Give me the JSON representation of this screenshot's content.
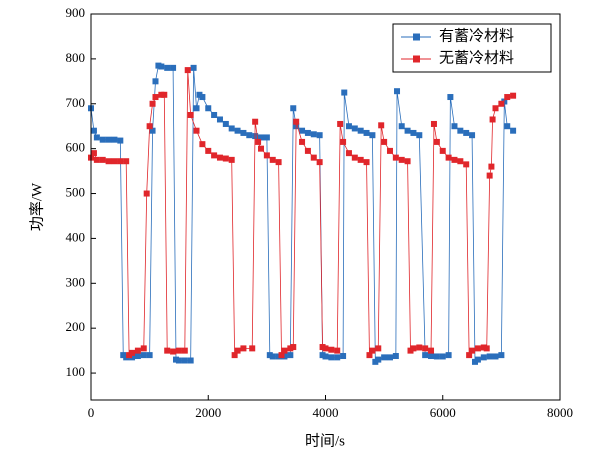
{
  "chart_data": {
    "type": "line",
    "xlabel": "时间/s",
    "ylabel": "功率/W",
    "xlim": [
      0,
      8000
    ],
    "xticks": [
      0,
      2000,
      4000,
      6000,
      8000
    ],
    "ylim": [
      40,
      900
    ],
    "yticks": [
      100,
      200,
      300,
      400,
      500,
      600,
      700,
      800,
      900
    ],
    "legend": "upper right",
    "series": [
      {
        "name": "有蓄冷材料",
        "color": "#2a6ebb",
        "x": [
          0,
          50,
          100,
          200,
          300,
          400,
          500,
          550,
          600,
          700,
          800,
          900,
          1000,
          1050,
          1100,
          1150,
          1200,
          1300,
          1400,
          1450,
          1500,
          1600,
          1700,
          1750,
          1800,
          1850,
          1900,
          2000,
          2100,
          2200,
          2300,
          2400,
          2500,
          2600,
          2700,
          2800,
          2900,
          3000,
          3050,
          3100,
          3200,
          3300,
          3400,
          3450,
          3500,
          3600,
          3700,
          3800,
          3900,
          3950,
          4000,
          4100,
          4200,
          4300,
          4320,
          4400,
          4500,
          4600,
          4700,
          4800,
          4850,
          4900,
          5000,
          5100,
          5200,
          5220,
          5300,
          5400,
          5500,
          5600,
          5700,
          5800,
          5900,
          6000,
          6100,
          6130,
          6200,
          6300,
          6400,
          6500,
          6550,
          6600,
          6700,
          6800,
          6900,
          7000,
          7050,
          7100,
          7200
        ],
        "values": [
          690,
          640,
          625,
          620,
          620,
          620,
          618,
          140,
          135,
          135,
          138,
          140,
          140,
          640,
          750,
          785,
          783,
          780,
          780,
          130,
          128,
          128,
          128,
          780,
          690,
          720,
          715,
          690,
          675,
          665,
          655,
          645,
          640,
          635,
          630,
          628,
          625,
          625,
          140,
          137,
          137,
          137,
          140,
          690,
          650,
          640,
          635,
          632,
          630,
          140,
          137,
          135,
          135,
          138,
          725,
          650,
          645,
          640,
          635,
          630,
          125,
          130,
          135,
          135,
          138,
          728,
          650,
          640,
          635,
          630,
          140,
          138,
          137,
          137,
          140,
          715,
          650,
          640,
          635,
          630,
          125,
          130,
          135,
          137,
          137,
          140,
          705,
          650,
          640
        ]
      },
      {
        "name": "无蓄冷材料",
        "color": "#e0262b",
        "x": [
          0,
          50,
          100,
          200,
          300,
          400,
          500,
          600,
          650,
          700,
          800,
          900,
          950,
          1000,
          1050,
          1100,
          1200,
          1250,
          1300,
          1400,
          1500,
          1600,
          1650,
          1700,
          1800,
          1900,
          2000,
          2100,
          2200,
          2300,
          2400,
          2450,
          2500,
          2600,
          2750,
          2800,
          2850,
          2900,
          3000,
          3100,
          3200,
          3250,
          3300,
          3400,
          3450,
          3500,
          3600,
          3700,
          3800,
          3900,
          3950,
          4000,
          4100,
          4200,
          4250,
          4300,
          4400,
          4500,
          4600,
          4700,
          4750,
          4800,
          4900,
          4950,
          5000,
          5100,
          5200,
          5300,
          5400,
          5450,
          5500,
          5600,
          5700,
          5800,
          5850,
          5900,
          6000,
          6100,
          6200,
          6300,
          6400,
          6450,
          6500,
          6600,
          6700,
          6750,
          6800,
          6830,
          6850,
          6900,
          7000,
          7100,
          7200
        ],
        "values": [
          580,
          590,
          575,
          575,
          572,
          572,
          572,
          572,
          140,
          145,
          150,
          155,
          500,
          650,
          700,
          715,
          720,
          720,
          150,
          148,
          150,
          150,
          775,
          675,
          640,
          610,
          595,
          585,
          580,
          578,
          575,
          140,
          150,
          155,
          155,
          660,
          615,
          600,
          585,
          575,
          570,
          140,
          150,
          155,
          158,
          660,
          615,
          595,
          580,
          570,
          158,
          155,
          152,
          150,
          655,
          615,
          590,
          580,
          575,
          570,
          140,
          150,
          155,
          652,
          615,
          595,
          580,
          575,
          572,
          150,
          155,
          157,
          155,
          150,
          655,
          615,
          595,
          580,
          575,
          572,
          565,
          140,
          150,
          155,
          157,
          155,
          540,
          560,
          665,
          690,
          700,
          715,
          718
        ]
      }
    ]
  }
}
